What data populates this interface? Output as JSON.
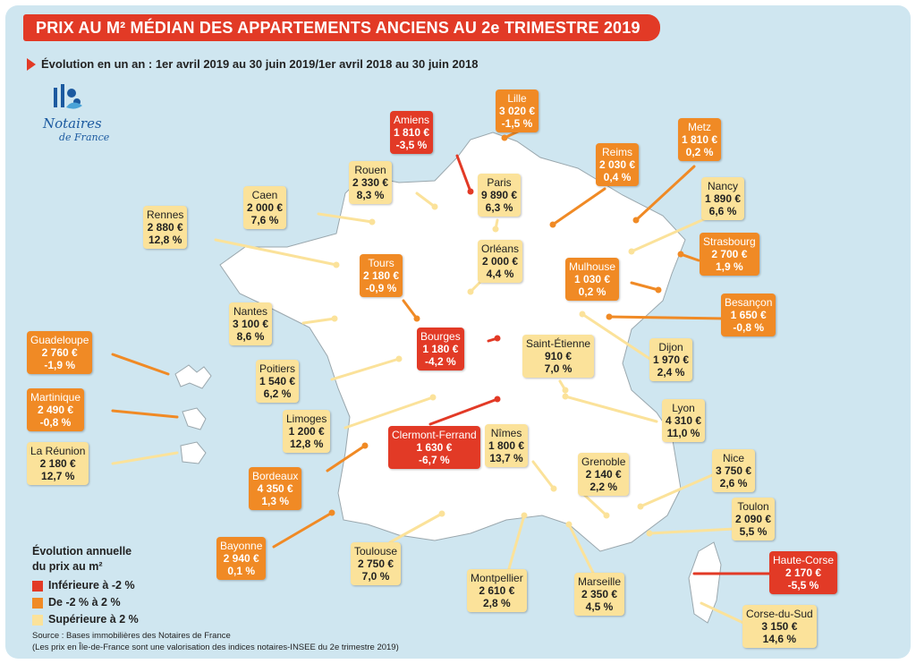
{
  "title": "PRIX AU M² MÉDIAN DES APPARTEMENTS ANCIENS AU 2e TRIMESTRE 2019",
  "subtitle": "Évolution en un an : 1er avril 2019 au 30 juin 2019/1er avril 2018 au 30 juin 2018",
  "logo": {
    "name": "Notaires",
    "sub": "de France",
    "icon": "notaires-logo-icon"
  },
  "colors": {
    "low": "#e23a26",
    "mid": "#f08a25",
    "high": "#fbe29a",
    "background": "#cfe6f0"
  },
  "legend": {
    "title_line1": "Évolution annuelle",
    "title_line2": "du prix au m²",
    "items": [
      {
        "label": "Inférieure à -2 %",
        "color": "#e23a26"
      },
      {
        "label": "De -2 % à 2 %",
        "color": "#f08a25"
      },
      {
        "label": "Supérieure à 2 %",
        "color": "#fbe29a"
      }
    ]
  },
  "source_line1": "Source : Bases immobilières des Notaires de France",
  "source_line2": "(Les prix en Île-de-France sont une valorisation des indices notaires-INSEE du 2e trimestre 2019)",
  "cities": [
    {
      "name": "Lille",
      "price": "3 020 €",
      "change": "-1,5 %",
      "class": "mid"
    },
    {
      "name": "Amiens",
      "price": "1 810 €",
      "change": "-3,5 %",
      "class": "low"
    },
    {
      "name": "Metz",
      "price": "1 810 €",
      "change": "0,2 %",
      "class": "mid"
    },
    {
      "name": "Reims",
      "price": "2 030 €",
      "change": "0,4 %",
      "class": "mid"
    },
    {
      "name": "Rouen",
      "price": "2 330 €",
      "change": "8,3 %",
      "class": "high"
    },
    {
      "name": "Caen",
      "price": "2 000 €",
      "change": "7,6 %",
      "class": "high"
    },
    {
      "name": "Paris",
      "price": "9 890 €",
      "change": "6,3 %",
      "class": "high"
    },
    {
      "name": "Nancy",
      "price": "1 890 €",
      "change": "6,6 %",
      "class": "high"
    },
    {
      "name": "Rennes",
      "price": "2 880 €",
      "change": "12,8 %",
      "class": "high"
    },
    {
      "name": "Strasbourg",
      "price": "2 700 €",
      "change": "1,9 %",
      "class": "mid"
    },
    {
      "name": "Orléans",
      "price": "2 000 €",
      "change": "4,4 %",
      "class": "high"
    },
    {
      "name": "Tours",
      "price": "2 180 €",
      "change": "-0,9 %",
      "class": "mid"
    },
    {
      "name": "Mulhouse",
      "price": "1 030 €",
      "change": "0,2 %",
      "class": "mid"
    },
    {
      "name": "Besançon",
      "price": "1 650 €",
      "change": "-0,8 %",
      "class": "mid"
    },
    {
      "name": "Nantes",
      "price": "3 100 €",
      "change": "8,6 %",
      "class": "high"
    },
    {
      "name": "Bourges",
      "price": "1 180 €",
      "change": "-4,2 %",
      "class": "low"
    },
    {
      "name": "Saint-Étienne",
      "price": "910 €",
      "change": "7,0 %",
      "class": "high"
    },
    {
      "name": "Guadeloupe",
      "price": "2 760 €",
      "change": "-1,9 %",
      "class": "mid"
    },
    {
      "name": "Dijon",
      "price": "1 970 €",
      "change": "2,4 %",
      "class": "high"
    },
    {
      "name": "Poitiers",
      "price": "1 540 €",
      "change": "6,2 %",
      "class": "high"
    },
    {
      "name": "Martinique",
      "price": "2 490 €",
      "change": "-0,8 %",
      "class": "mid"
    },
    {
      "name": "Lyon",
      "price": "4 310 €",
      "change": "11,0 %",
      "class": "high"
    },
    {
      "name": "Limoges",
      "price": "1 200 €",
      "change": "12,8 %",
      "class": "high"
    },
    {
      "name": "Clermont-Ferrand",
      "price": "1 630 €",
      "change": "-6,7 %",
      "class": "low"
    },
    {
      "name": "Nîmes",
      "price": "1 800 €",
      "change": "13,7 %",
      "class": "high"
    },
    {
      "name": "La Réunion",
      "price": "2 180 €",
      "change": "12,7 %",
      "class": "high"
    },
    {
      "name": "Nice",
      "price": "3 750 €",
      "change": "2,6 %",
      "class": "high"
    },
    {
      "name": "Bordeaux",
      "price": "4 350 €",
      "change": "1,3 %",
      "class": "mid"
    },
    {
      "name": "Grenoble",
      "price": "2 140 €",
      "change": "2,2 %",
      "class": "high"
    },
    {
      "name": "Toulon",
      "price": "2 090 €",
      "change": "5,5 %",
      "class": "high"
    },
    {
      "name": "Bayonne",
      "price": "2 940 €",
      "change": "0,1 %",
      "class": "mid"
    },
    {
      "name": "Toulouse",
      "price": "2 750 €",
      "change": "7,0 %",
      "class": "high"
    },
    {
      "name": "Haute-Corse",
      "price": "2 170 €",
      "change": "-5,5 %",
      "class": "low"
    },
    {
      "name": "Montpellier",
      "price": "2 610 €",
      "change": "2,8 %",
      "class": "high"
    },
    {
      "name": "Marseille",
      "price": "2 350 €",
      "change": "4,5 %",
      "class": "high"
    },
    {
      "name": "Corse-du-Sud",
      "price": "3 150 €",
      "change": "14,6 %",
      "class": "high"
    }
  ]
}
